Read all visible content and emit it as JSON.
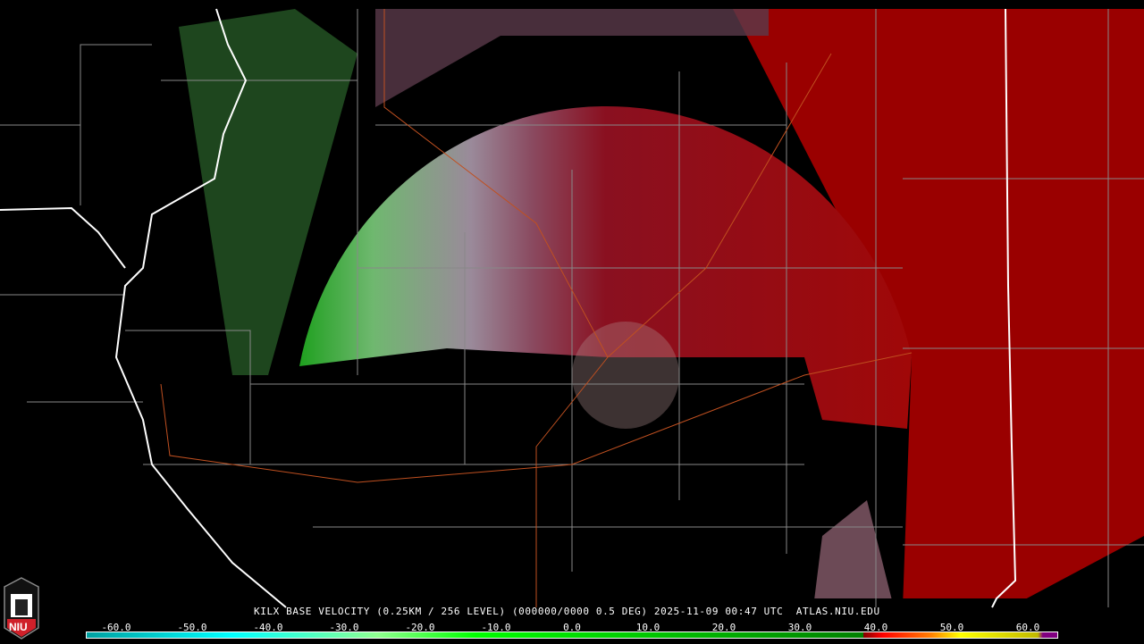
{
  "caption": {
    "station": "KILX",
    "product": "BASE VELOCITY",
    "resolution": "(0.25KM / 256 LEVEL)",
    "volume": "(000000/0000 0.5 DEG)",
    "datetime": "2025-11-09 00:47 UTC",
    "source": "ATLAS.NIU.EDU"
  },
  "logo": {
    "text": "NIU",
    "icon": "niu-castle-logo"
  },
  "colorbar": {
    "units_ticks": [
      "-60.0",
      "-50.0",
      "-40.0",
      "-30.0",
      "-20.0",
      "-10.0",
      "0.0",
      "10.0",
      "20.0",
      "30.0",
      "40.0",
      "50.0",
      "60.0"
    ],
    "tick_values": [
      -60,
      -50,
      -40,
      -30,
      -20,
      -10,
      0,
      10,
      20,
      30,
      40,
      50,
      60
    ],
    "range": [
      -64,
      64
    ],
    "colors": {
      "inbound_strong": "#00a0a0",
      "inbound_cyan": "#00ffff",
      "inbound_light": "#90ff90",
      "inbound_green": "#00ff00",
      "inbound_dark": "#008000",
      "zero": "#a0a0a0",
      "outbound_pink": "#a06080",
      "outbound_dark": "#800000",
      "outbound_red": "#ff0000",
      "outbound_orange": "#ff8000",
      "outbound_yellow": "#ffff00",
      "range_folded": "#800080"
    }
  }
}
